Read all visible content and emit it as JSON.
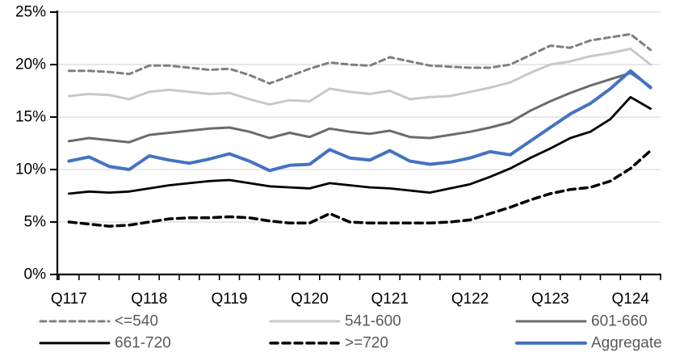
{
  "chart_data": {
    "type": "line",
    "title": "",
    "xlabel": "",
    "ylabel": "",
    "ylim": [
      0,
      25
    ],
    "grid": true,
    "gridline_color": "#d9d9d9",
    "axis_color": "#000000",
    "legend_position": "bottom",
    "legend_text_color": "#595959",
    "axis_label_color": "#000000",
    "accent_blue": "#4472c4",
    "y_tick_labels": [
      "0%",
      "5%",
      "10%",
      "15%",
      "20%",
      "25%"
    ],
    "x_axis_labels": [
      {
        "label": "Q117",
        "index": 0
      },
      {
        "label": "Q118",
        "index": 4
      },
      {
        "label": "Q119",
        "index": 8
      },
      {
        "label": "Q120",
        "index": 12
      },
      {
        "label": "Q121",
        "index": 16
      },
      {
        "label": "Q122",
        "index": 20
      },
      {
        "label": "Q123",
        "index": 24
      },
      {
        "label": "Q124",
        "index": 28
      }
    ],
    "x": [
      "2017Q1",
      "2017Q2",
      "2017Q3",
      "2017Q4",
      "2018Q1",
      "2018Q2",
      "2018Q3",
      "2018Q4",
      "2019Q1",
      "2019Q2",
      "2019Q3",
      "2019Q4",
      "2020Q1",
      "2020Q2",
      "2020Q3",
      "2020Q4",
      "2021Q1",
      "2021Q2",
      "2021Q3",
      "2021Q4",
      "2022Q1",
      "2022Q2",
      "2022Q3",
      "2022Q4",
      "2023Q1",
      "2023Q2",
      "2023Q3",
      "2023Q4",
      "2024Q1",
      "2024Q2"
    ],
    "series": [
      {
        "name": "<=540",
        "color": "#7f7f7f",
        "dash": "7 5",
        "width": 3,
        "values": [
          19.4,
          19.4,
          19.3,
          19.1,
          19.9,
          19.9,
          19.7,
          19.5,
          19.6,
          19.0,
          18.2,
          18.9,
          19.6,
          20.2,
          20.0,
          19.9,
          20.7,
          20.3,
          19.9,
          19.8,
          19.7,
          19.7,
          20.0,
          20.9,
          21.8,
          21.6,
          22.3,
          22.6,
          22.9,
          21.4
        ]
      },
      {
        "name": "541-600",
        "color": "#c8c8c8",
        "dash": "",
        "width": 3,
        "values": [
          17.0,
          17.2,
          17.1,
          16.7,
          17.4,
          17.6,
          17.4,
          17.2,
          17.3,
          16.7,
          16.2,
          16.6,
          16.5,
          17.7,
          17.4,
          17.2,
          17.5,
          16.7,
          16.9,
          17.0,
          17.4,
          17.8,
          18.3,
          19.2,
          20.0,
          20.3,
          20.8,
          21.1,
          21.5,
          20.0
        ]
      },
      {
        "name": "601-660",
        "color": "#6b6b6b",
        "dash": "",
        "width": 3,
        "values": [
          12.7,
          13.0,
          12.8,
          12.6,
          13.3,
          13.5,
          13.7,
          13.9,
          14.0,
          13.6,
          13.0,
          13.5,
          13.1,
          13.9,
          13.6,
          13.4,
          13.7,
          13.1,
          13.0,
          13.3,
          13.6,
          14.0,
          14.5,
          15.6,
          16.5,
          17.3,
          18.0,
          18.6,
          19.2,
          17.9
        ]
      },
      {
        "name": "661-720",
        "color": "#000000",
        "dash": "",
        "width": 2.8,
        "values": [
          7.7,
          7.9,
          7.8,
          7.9,
          8.2,
          8.5,
          8.7,
          8.9,
          9.0,
          8.7,
          8.4,
          8.3,
          8.2,
          8.7,
          8.5,
          8.3,
          8.2,
          8.0,
          7.8,
          8.2,
          8.6,
          9.3,
          10.1,
          11.1,
          12.0,
          13.0,
          13.6,
          14.8,
          16.9,
          15.8
        ]
      },
      {
        "name": ">=720",
        "color": "#000000",
        "dash": "9 6",
        "width": 3.5,
        "values": [
          5.0,
          4.8,
          4.6,
          4.7,
          5.0,
          5.3,
          5.4,
          5.4,
          5.5,
          5.4,
          5.1,
          4.9,
          4.9,
          5.8,
          5.0,
          4.9,
          4.9,
          4.9,
          4.9,
          5.0,
          5.2,
          5.8,
          6.4,
          7.1,
          7.7,
          8.1,
          8.3,
          8.9,
          10.1,
          11.8
        ]
      },
      {
        "name": "Aggregate",
        "color": "#4472c4",
        "dash": "",
        "width": 4,
        "values": [
          10.8,
          11.2,
          10.3,
          10.0,
          11.3,
          10.9,
          10.6,
          11.0,
          11.5,
          10.8,
          9.9,
          10.4,
          10.5,
          11.9,
          11.1,
          10.9,
          11.8,
          10.8,
          10.5,
          10.7,
          11.1,
          11.7,
          11.4,
          12.7,
          14.0,
          15.3,
          16.3,
          17.7,
          19.4,
          17.8
        ]
      }
    ],
    "legend_rows": [
      [
        "<=540",
        "541-600",
        "601-660"
      ],
      [
        "661-720",
        ">=720",
        "Aggregate"
      ]
    ]
  }
}
